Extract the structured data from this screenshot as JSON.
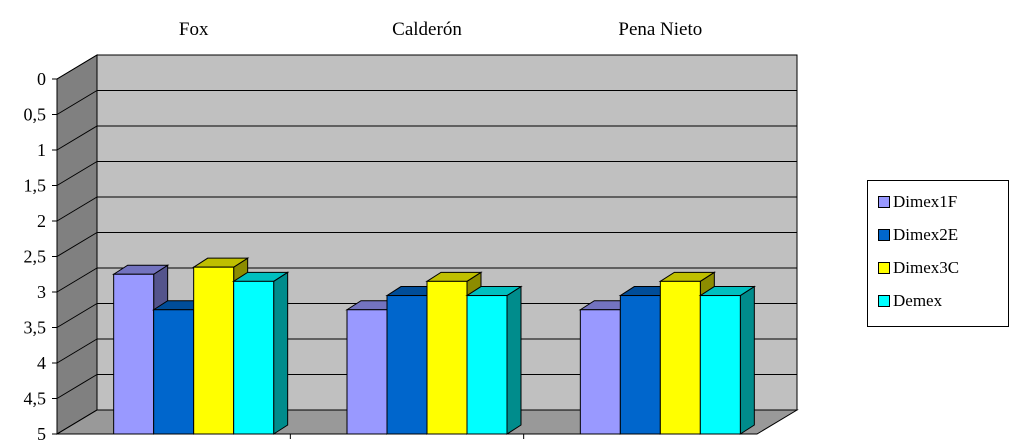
{
  "chart_data": {
    "type": "bar",
    "categories": [
      "Fox",
      "Calderón",
      "Pena Nieto"
    ],
    "series": [
      {
        "name": "Dimex1F",
        "values": [
          2.75,
          3.25,
          3.25
        ],
        "color": "#9999FF"
      },
      {
        "name": "Dimex2E",
        "values": [
          3.25,
          3.05,
          3.05
        ],
        "color": "#0066CC"
      },
      {
        "name": "Dimex3C",
        "values": [
          2.65,
          2.85,
          2.85
        ],
        "color": "#FFFF00"
      },
      {
        "name": "Demex",
        "values": [
          2.85,
          3.05,
          3.05
        ],
        "color": "#00FFFF"
      }
    ],
    "y_axis": {
      "reversed": true,
      "ylim": [
        0,
        5
      ],
      "ticks": [
        "0",
        "0,5",
        "1",
        "1,5",
        "2",
        "2,5",
        "3",
        "3,5",
        "4",
        "4,5",
        "5"
      ]
    },
    "category_position": "top",
    "style": "3d-clustered-column",
    "grid": true,
    "legend_position": "right",
    "wall_color": "#C0C0C0",
    "floor_color": "#999999"
  }
}
